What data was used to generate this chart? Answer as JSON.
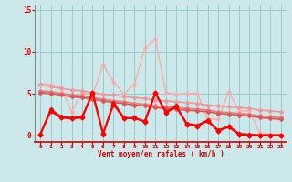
{
  "background_color": "#cce8ea",
  "grid_color": "#99cccc",
  "xlabel": "Vent moyen/en rafales ( km/h )",
  "xlabel_color": "#cc0000",
  "ylabel_color": "#cc0000",
  "yticks": [
    0,
    5,
    10,
    15
  ],
  "xlim": [
    -0.5,
    23.5
  ],
  "ylim": [
    -0.8,
    15.5
  ],
  "x": [
    0,
    1,
    2,
    3,
    4,
    5,
    6,
    7,
    8,
    9,
    10,
    11,
    12,
    13,
    14,
    15,
    16,
    17,
    18,
    19,
    20,
    21,
    22,
    23
  ],
  "lines": [
    {
      "y": [
        6.2,
        6.0,
        5.7,
        2.8,
        5.1,
        4.8,
        8.4,
        6.4,
        4.9,
        6.1,
        10.4,
        11.5,
        5.1,
        4.9,
        5.0,
        5.0,
        2.0,
        1.9,
        5.2,
        2.9,
        2.9,
        0.2,
        0.1,
        0.1
      ],
      "color": "#ffaaaa",
      "lw": 1.0,
      "marker": "D",
      "markersize": 1.8,
      "zorder": 1
    },
    {
      "y": [
        6.0,
        5.8,
        5.6,
        5.4,
        5.3,
        5.1,
        4.9,
        4.8,
        4.6,
        4.5,
        4.4,
        4.2,
        4.1,
        4.0,
        3.9,
        3.8,
        3.6,
        3.5,
        3.4,
        3.3,
        3.2,
        3.0,
        2.9,
        2.8
      ],
      "color": "#ee9999",
      "lw": 1.2,
      "marker": "D",
      "markersize": 2.0,
      "zorder": 2
    },
    {
      "y": [
        5.3,
        5.2,
        5.0,
        4.8,
        4.7,
        4.5,
        4.3,
        4.1,
        4.0,
        3.8,
        3.7,
        3.5,
        3.4,
        3.3,
        3.2,
        3.1,
        3.0,
        2.8,
        2.7,
        2.6,
        2.5,
        2.3,
        2.2,
        2.1
      ],
      "color": "#ee7777",
      "lw": 1.2,
      "marker": "D",
      "markersize": 2.0,
      "zorder": 3
    },
    {
      "y": [
        5.1,
        5.0,
        4.8,
        4.6,
        4.5,
        4.3,
        4.1,
        3.9,
        3.8,
        3.6,
        3.5,
        3.3,
        3.2,
        3.1,
        3.0,
        2.9,
        2.8,
        2.6,
        2.5,
        2.4,
        2.3,
        2.1,
        2.0,
        1.9
      ],
      "color": "#dd5555",
      "lw": 1.2,
      "marker": "D",
      "markersize": 2.0,
      "zorder": 4
    },
    {
      "y": [
        0.1,
        3.1,
        2.2,
        2.1,
        2.2,
        5.0,
        0.1,
        3.9,
        2.1,
        2.0,
        1.7,
        5.0,
        2.8,
        3.5,
        1.4,
        1.2,
        1.8,
        0.6,
        1.1,
        0.2,
        0.1,
        0.0,
        0.0,
        0.0
      ],
      "color": "#cc2222",
      "lw": 1.3,
      "marker": "D",
      "markersize": 2.2,
      "zorder": 5
    },
    {
      "y": [
        0.1,
        2.9,
        2.1,
        2.0,
        2.1,
        5.1,
        0.2,
        3.7,
        2.0,
        2.1,
        1.6,
        5.1,
        2.7,
        3.4,
        1.3,
        1.1,
        1.7,
        0.5,
        1.0,
        0.1,
        0.0,
        0.0,
        0.0,
        0.0
      ],
      "color": "#ff0000",
      "lw": 1.5,
      "marker": "D",
      "markersize": 2.5,
      "zorder": 6
    }
  ]
}
